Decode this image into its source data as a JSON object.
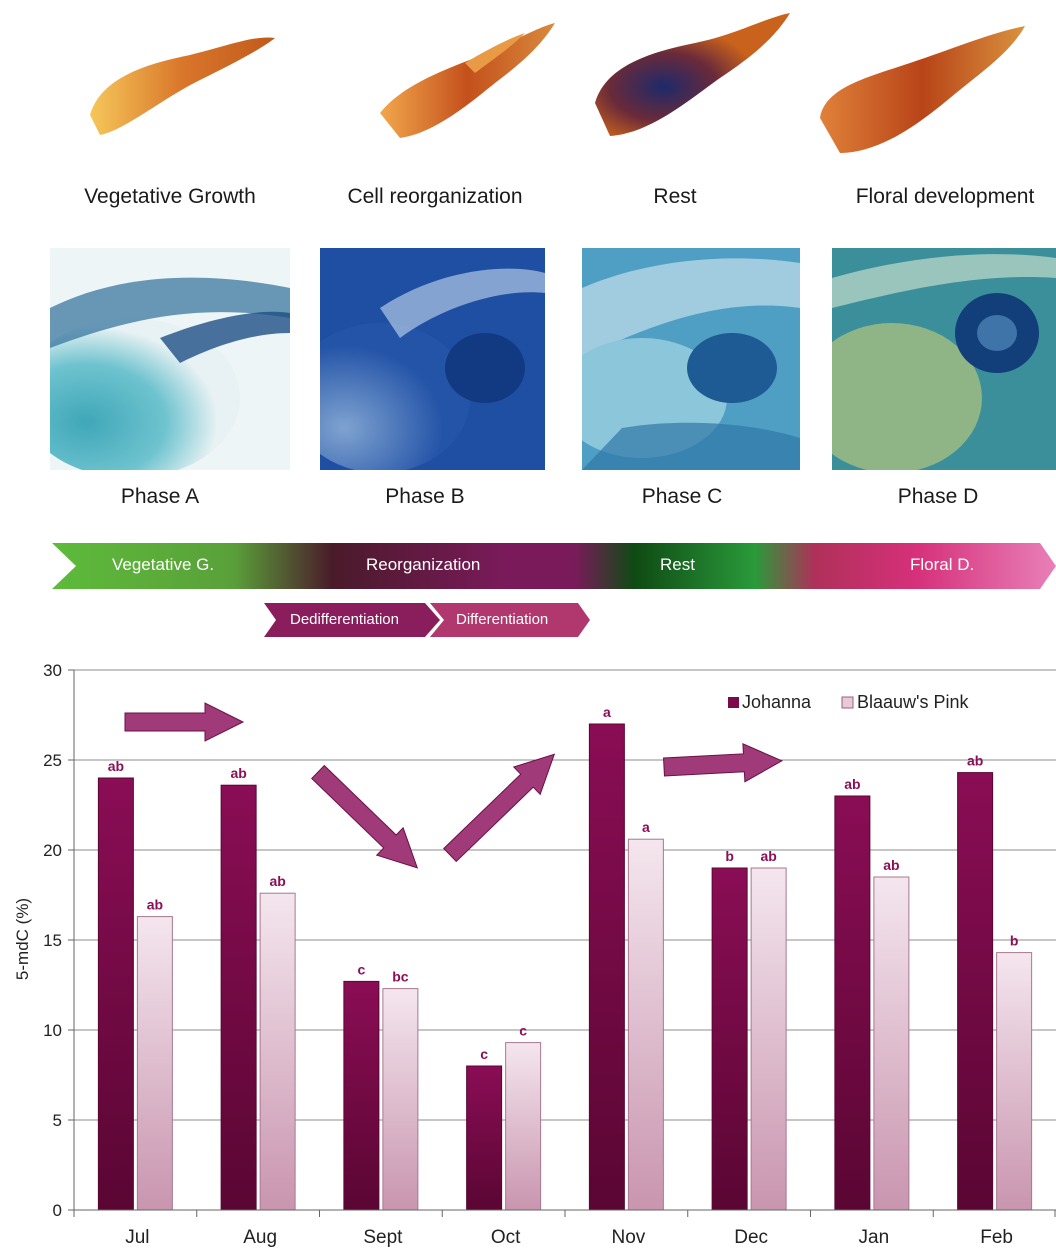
{
  "stages": [
    {
      "label": "Vegetative Growth"
    },
    {
      "label": "Cell reorganization"
    },
    {
      "label": "Rest"
    },
    {
      "label": "Floral development"
    }
  ],
  "phases": [
    {
      "label": "Phase A"
    },
    {
      "label": "Phase B"
    },
    {
      "label": "Phase C"
    },
    {
      "label": "Phase D"
    }
  ],
  "banner": {
    "segments": [
      "Vegetative G.",
      "Reorganization",
      "Rest",
      "Floral D."
    ],
    "sub_segments": [
      "Dedifferentiation",
      "Differentiation"
    ]
  },
  "colors": {
    "johanna": "#7a0a4a",
    "blaauws_pink": "#e8c9d7",
    "arrow": "#a03a78",
    "letter": "#8a1058"
  },
  "chart_data": {
    "type": "bar",
    "categories": [
      "Jul",
      "Aug",
      "Sept",
      "Oct",
      "Nov",
      "Dec",
      "Jan",
      "Feb"
    ],
    "series": [
      {
        "name": "Johanna",
        "values": [
          24.0,
          23.6,
          12.7,
          8.0,
          27.0,
          19.0,
          23.0,
          24.3
        ],
        "letters": [
          "ab",
          "ab",
          "c",
          "c",
          "a",
          "b",
          "ab",
          "ab"
        ]
      },
      {
        "name": "Blaauw's Pink",
        "values": [
          16.3,
          17.6,
          12.3,
          9.3,
          20.6,
          19.0,
          18.5,
          14.3
        ],
        "letters": [
          "ab",
          "ab",
          "bc",
          "c",
          "a",
          "ab",
          "ab",
          "b"
        ]
      }
    ],
    "ylabel": "5-mdC (%)",
    "xlabel": "",
    "ylim": [
      0,
      30
    ],
    "yticks": [
      0,
      5,
      10,
      15,
      20,
      25,
      30
    ],
    "grid": true,
    "legend": "top-right"
  }
}
